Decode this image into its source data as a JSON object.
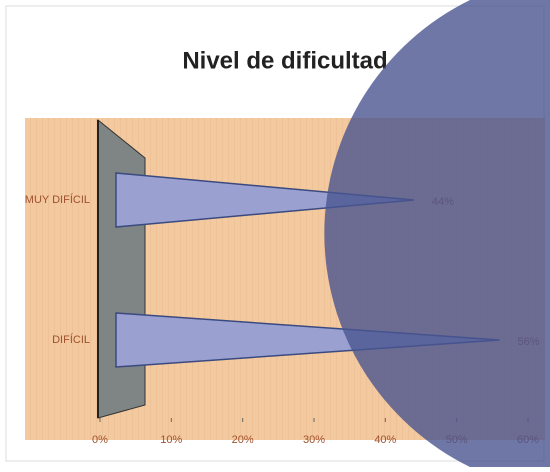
{
  "chart_data": {
    "type": "bar",
    "title": "Nivel de dificultad",
    "categories": [
      "MUY DIFÍCIL",
      "DIFÍCIL"
    ],
    "values": [
      44,
      56
    ],
    "value_labels": [
      "44%",
      "56%"
    ],
    "color": "#9aa0d0",
    "xlim": [
      0,
      60
    ],
    "xticks": [
      {
        "value": 0,
        "label": "0%"
      },
      {
        "value": 10,
        "label": "10%"
      },
      {
        "value": 20,
        "label": "20%"
      },
      {
        "value": 30,
        "label": "30%"
      },
      {
        "value": 40,
        "label": "40%"
      },
      {
        "value": 50,
        "label": "50%"
      },
      {
        "value": 60,
        "label": "60%"
      }
    ]
  }
}
